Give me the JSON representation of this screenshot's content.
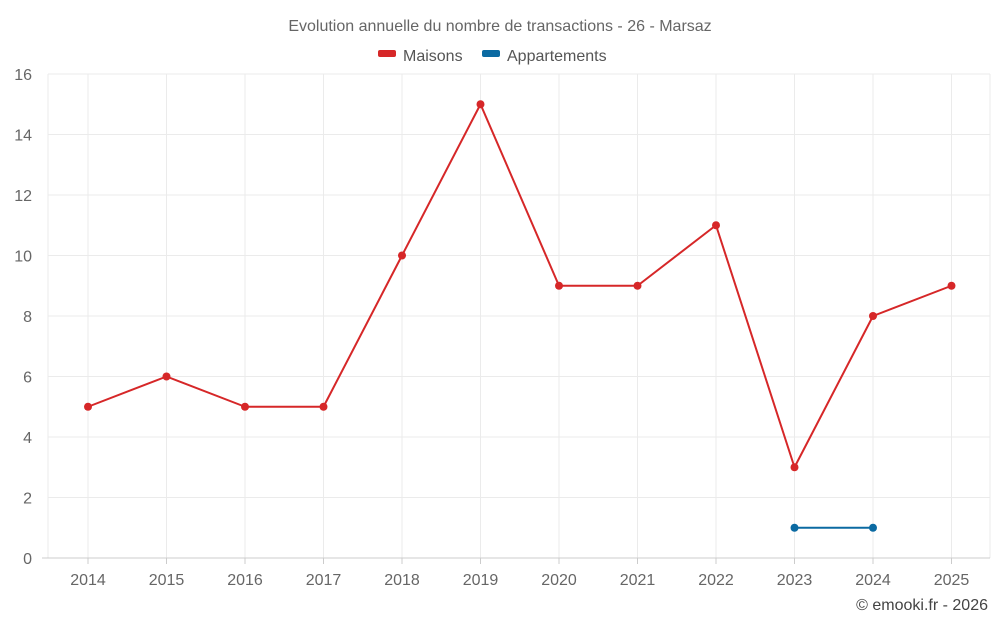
{
  "chart_data": {
    "type": "line",
    "title": "Evolution annuelle du nombre de transactions - 26 - Marsaz",
    "categories": [
      "2014",
      "2015",
      "2016",
      "2017",
      "2018",
      "2019",
      "2020",
      "2021",
      "2022",
      "2023",
      "2024",
      "2025"
    ],
    "ylim": [
      0,
      16
    ],
    "yticks": [
      0,
      2,
      4,
      6,
      8,
      10,
      12,
      14,
      16
    ],
    "grid": true,
    "legend_position": "top-center",
    "series": [
      {
        "name": "Maisons",
        "color": "#d62728",
        "values": [
          5,
          6,
          5,
          5,
          10,
          15,
          9,
          9,
          11,
          3,
          8,
          9
        ]
      },
      {
        "name": "Appartements",
        "color": "#0b6aa2",
        "values": [
          null,
          null,
          null,
          null,
          null,
          null,
          null,
          null,
          null,
          1,
          1,
          null
        ]
      }
    ]
  },
  "credit": "© emooki.fr - 2026"
}
